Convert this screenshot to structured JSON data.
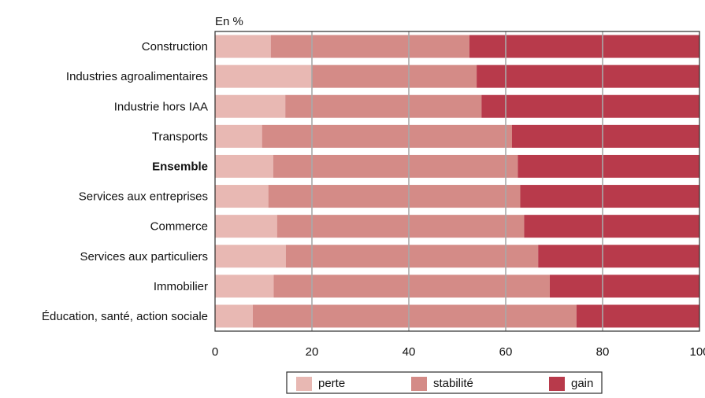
{
  "chart_data": {
    "type": "bar",
    "orientation": "horizontal",
    "stacked": true,
    "unit_label": "En %",
    "categories": [
      "Construction",
      "Industries agroalimentaires",
      "Industrie hors IAA",
      "Transports",
      "Ensemble",
      "Services aux entreprises",
      "Commerce",
      "Services aux particuliers",
      "Immobilier",
      "Éducation, santé, action sociale"
    ],
    "highlighted_category": "Ensemble",
    "series": [
      {
        "name": "perte",
        "color": "#e8b8b3",
        "values": [
          11.5,
          20,
          14.5,
          9.7,
          12,
          11,
          12.8,
          14.6,
          12.1,
          7.8
        ]
      },
      {
        "name": "stabilité",
        "color": "#d48b87",
        "values": [
          41,
          34,
          40.5,
          51.6,
          50.5,
          52,
          51,
          52.1,
          57,
          66.8
        ]
      },
      {
        "name": "gain",
        "color": "#b83a4b",
        "values": [
          47.5,
          46,
          45,
          38.7,
          37.5,
          37,
          36.2,
          33.3,
          30.9,
          25.4
        ]
      }
    ],
    "x_ticks": [
      0,
      20,
      40,
      60,
      80,
      100
    ],
    "xlim": [
      0,
      100
    ],
    "grid": true,
    "legend_position": "bottom"
  }
}
